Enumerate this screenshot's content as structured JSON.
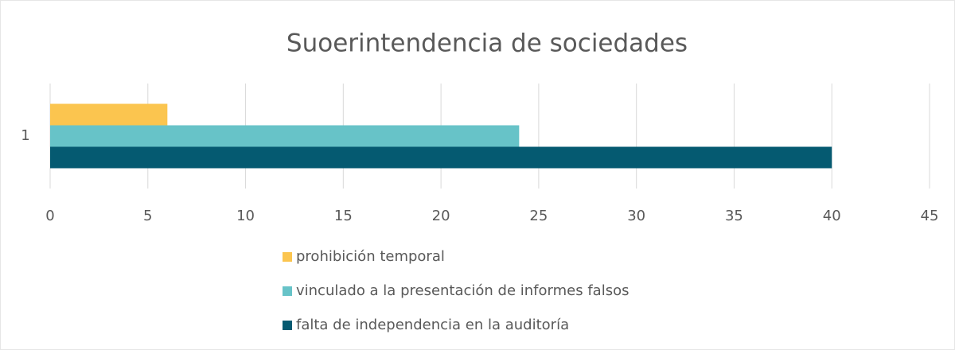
{
  "chart_data": {
    "type": "bar",
    "orientation": "horizontal",
    "title": "Suoerintendencia de sociedades",
    "categories": [
      "1"
    ],
    "series": [
      {
        "name": "prohibición temporal",
        "color": "#fbc54f",
        "values": [
          6
        ]
      },
      {
        "name": "vinculado a la presentación de informes falsos",
        "color": "#67c3c8",
        "values": [
          24
        ]
      },
      {
        "name": "falta de independencia en la auditoría",
        "color": "#055a71",
        "values": [
          40
        ]
      }
    ],
    "xlim": [
      0,
      45
    ],
    "xticks": [
      0,
      5,
      10,
      15,
      20,
      25,
      30,
      35,
      40,
      45
    ],
    "grid": true,
    "legend": "bottom"
  }
}
